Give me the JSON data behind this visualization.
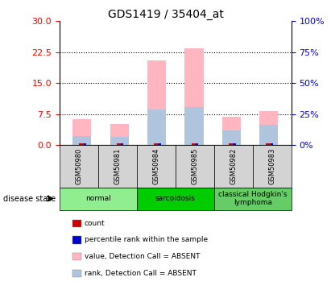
{
  "title": "GDS1419 / 35404_at",
  "samples": [
    "GSM50980",
    "GSM50981",
    "GSM50984",
    "GSM50985",
    "GSM50982",
    "GSM50983"
  ],
  "groups": [
    {
      "name": "normal",
      "color": "#90EE90",
      "samples": [
        "GSM50980",
        "GSM50981"
      ]
    },
    {
      "name": "sarcoidosis",
      "color": "#00CC00",
      "samples": [
        "GSM50984",
        "GSM50985"
      ]
    },
    {
      "name": "classical Hodgkin's\nlymphoma",
      "color": "#66CC66",
      "samples": [
        "GSM50982",
        "GSM50983"
      ]
    }
  ],
  "value_absent": [
    6.2,
    5.0,
    20.5,
    23.5,
    6.8,
    8.2
  ],
  "rank_absent": [
    2.1,
    1.9,
    8.5,
    9.2,
    3.5,
    4.8
  ],
  "count_red": [
    0.3,
    0.3,
    0.3,
    0.3,
    0.3,
    0.3
  ],
  "percentile_blue": [
    0.3,
    0.3,
    0.3,
    0.3,
    0.3,
    0.3
  ],
  "ylim_left": [
    0,
    30
  ],
  "ylim_right": [
    0,
    100
  ],
  "yticks_left": [
    0,
    7.5,
    15,
    22.5,
    30
  ],
  "yticks_right": [
    0,
    25,
    50,
    75,
    100
  ],
  "bar_width": 0.5,
  "bg_color": "#ffffff",
  "plot_bg": "#ffffff",
  "grid_color": "#000000",
  "absent_bar_color": "#FFB6C1",
  "rank_absent_color": "#B0C4DE",
  "count_color": "#CC0000",
  "percentile_color": "#0000CC",
  "legend_items": [
    {
      "label": "count",
      "color": "#CC0000"
    },
    {
      "label": "percentile rank within the sample",
      "color": "#0000CC"
    },
    {
      "label": "value, Detection Call = ABSENT",
      "color": "#FFB6C1"
    },
    {
      "label": "rank, Detection Call = ABSENT",
      "color": "#B0C4DE"
    }
  ]
}
